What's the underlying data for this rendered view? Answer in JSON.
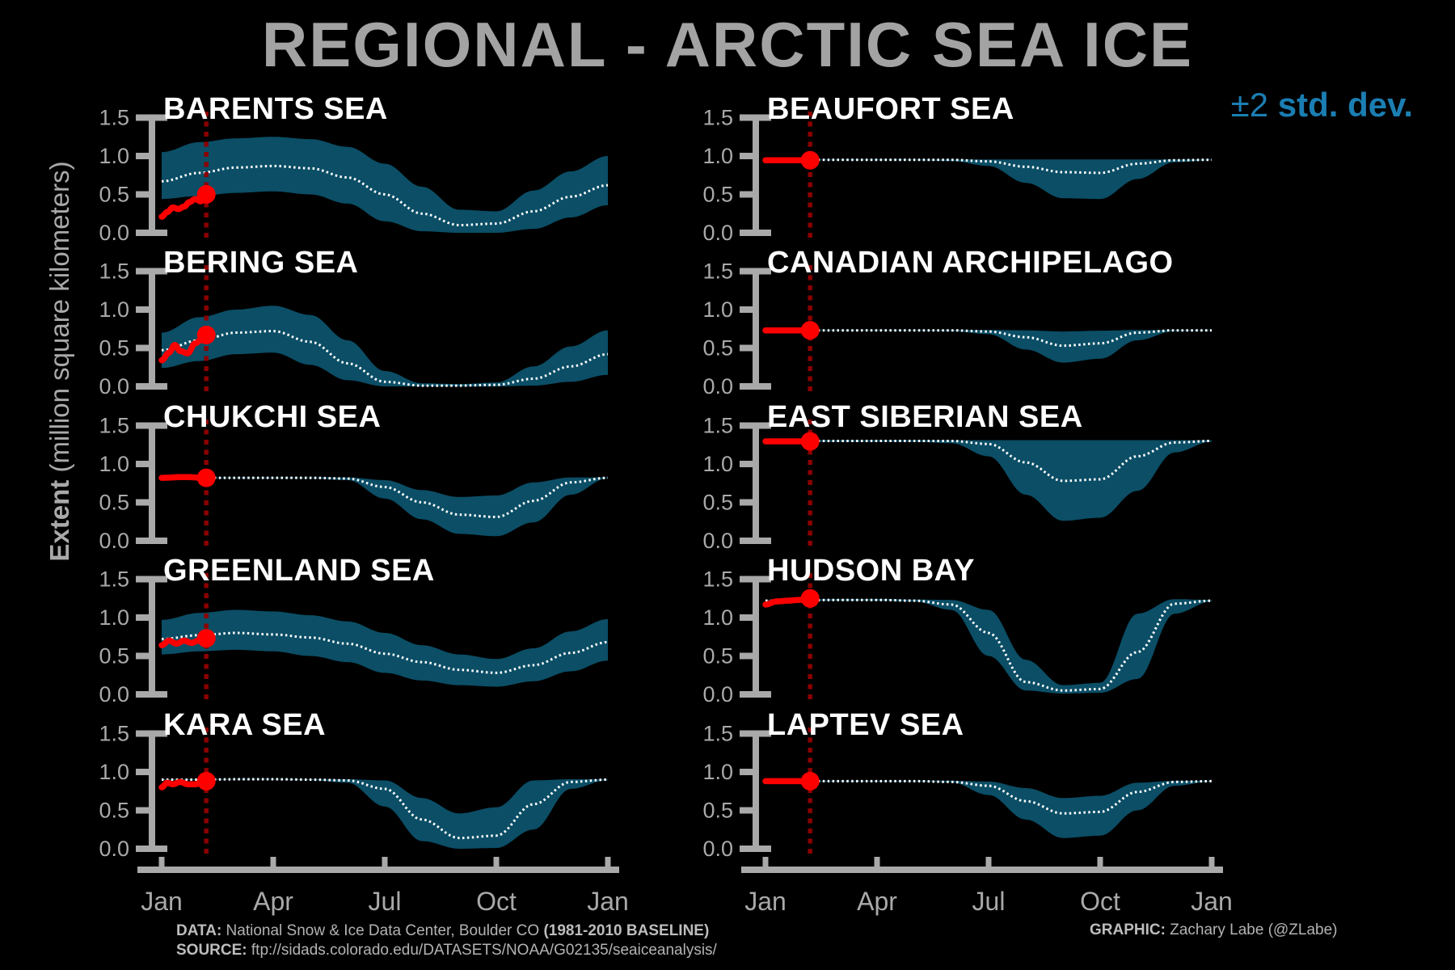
{
  "title": "REGIONAL - ARCTIC SEA ICE",
  "legend": {
    "symbol": "±2",
    "label": "std. dev."
  },
  "y_axis": {
    "label_bold": "Extent",
    "label_rest": " (million square kilometers)"
  },
  "footer": {
    "data_label": "DATA:",
    "data_value": " National Snow & Ice Data Center, Boulder CO ",
    "data_baseline": "(1981-2010 BASELINE)",
    "source_label": "SOURCE:",
    "source_value": " ftp://sidads.colorado.edu/DATASETS/NOAA/G02135/seaiceanalysis/",
    "graphic_label": "GRAPHIC:",
    "graphic_value": " Zachary Labe (@ZLabe)"
  },
  "colors": {
    "background": "#000000",
    "band": "#0b4e66",
    "mean_line": "#ffffff",
    "current_line": "#ff0000",
    "date_marker": "#8b0000",
    "axis": "#a9a9a9",
    "tick_labels": "#a9a9a9",
    "title": "#a3a3a3",
    "region_title": "#ffffff",
    "legend_blue": "#1b7eb2",
    "footer": "#b3b3b3"
  },
  "axes": {
    "ylim": [
      0,
      1.6
    ],
    "yticks": [
      {
        "label": "1.5",
        "value": 1.5
      },
      {
        "label": "1.0",
        "value": 1.0
      },
      {
        "label": "0.5",
        "value": 0.5
      },
      {
        "label": "0.0",
        "value": 0.0
      }
    ],
    "xticks": [
      {
        "label": "Jan",
        "month": 0
      },
      {
        "label": "Apr",
        "month": 3
      },
      {
        "label": "Jul",
        "month": 6
      },
      {
        "label": "Oct",
        "month": 9
      },
      {
        "label": "Jan",
        "month": 12
      }
    ]
  },
  "chart_data": {
    "type": "area",
    "units": "million square kilometers",
    "band_meaning": "±2 std. dev. envelope around 1981-2010 climatological mean",
    "x_months": [
      0,
      1,
      2,
      3,
      4,
      5,
      6,
      7,
      8,
      9,
      10,
      11,
      12
    ],
    "regions": [
      {
        "name": "BARENTS SEA",
        "column": "left",
        "row": 0,
        "climatology_mean": [
          0.67,
          0.78,
          0.85,
          0.87,
          0.84,
          0.72,
          0.5,
          0.25,
          0.1,
          0.12,
          0.28,
          0.47,
          0.62
        ],
        "band_upper": [
          1.05,
          1.18,
          1.23,
          1.25,
          1.22,
          1.12,
          0.9,
          0.6,
          0.3,
          0.28,
          0.55,
          0.8,
          1.0
        ],
        "band_lower": [
          0.44,
          0.48,
          0.52,
          0.54,
          0.5,
          0.38,
          0.15,
          0.02,
          0.0,
          0.0,
          0.05,
          0.2,
          0.36
        ],
        "current_year": {
          "months": [
            0,
            0.15,
            0.3,
            0.45,
            0.6,
            0.75,
            0.9,
            1.05,
            1.2
          ],
          "extent": [
            0.21,
            0.27,
            0.33,
            0.31,
            0.34,
            0.4,
            0.44,
            0.41,
            0.5
          ]
        }
      },
      {
        "name": "BERING SEA",
        "column": "left",
        "row": 1,
        "climatology_mean": [
          0.47,
          0.6,
          0.7,
          0.72,
          0.58,
          0.3,
          0.06,
          0.01,
          0.01,
          0.02,
          0.1,
          0.26,
          0.42
        ],
        "band_upper": [
          0.7,
          0.9,
          1.0,
          1.05,
          0.93,
          0.6,
          0.2,
          0.04,
          0.03,
          0.05,
          0.26,
          0.52,
          0.73
        ],
        "band_lower": [
          0.24,
          0.33,
          0.42,
          0.44,
          0.28,
          0.08,
          0.0,
          0.0,
          0.0,
          0.0,
          0.01,
          0.06,
          0.15
        ],
        "current_year": {
          "months": [
            0,
            0.2,
            0.35,
            0.5,
            0.7,
            0.9,
            1.05,
            1.2
          ],
          "extent": [
            0.34,
            0.44,
            0.54,
            0.46,
            0.43,
            0.56,
            0.6,
            0.67
          ]
        }
      },
      {
        "name": "CHUKCHI SEA",
        "column": "left",
        "row": 2,
        "climatology_mean": [
          0.82,
          0.82,
          0.82,
          0.82,
          0.82,
          0.81,
          0.7,
          0.5,
          0.34,
          0.31,
          0.52,
          0.76,
          0.82
        ],
        "band_upper": [
          0.825,
          0.825,
          0.825,
          0.825,
          0.825,
          0.825,
          0.79,
          0.66,
          0.57,
          0.59,
          0.76,
          0.825,
          0.825
        ],
        "band_lower": [
          0.815,
          0.815,
          0.815,
          0.815,
          0.815,
          0.79,
          0.55,
          0.28,
          0.09,
          0.06,
          0.24,
          0.6,
          0.815
        ],
        "current_year": {
          "months": [
            0,
            0.6,
            1.2
          ],
          "extent": [
            0.82,
            0.83,
            0.82
          ]
        }
      },
      {
        "name": "GREENLAND SEA",
        "column": "left",
        "row": 3,
        "climatology_mean": [
          0.72,
          0.77,
          0.8,
          0.78,
          0.74,
          0.66,
          0.53,
          0.42,
          0.32,
          0.28,
          0.38,
          0.54,
          0.68
        ],
        "band_upper": [
          0.97,
          1.06,
          1.1,
          1.08,
          1.03,
          0.95,
          0.8,
          0.64,
          0.52,
          0.46,
          0.6,
          0.82,
          0.98
        ],
        "band_lower": [
          0.52,
          0.56,
          0.58,
          0.56,
          0.5,
          0.42,
          0.28,
          0.18,
          0.12,
          0.1,
          0.17,
          0.3,
          0.44
        ],
        "current_year": {
          "months": [
            0,
            0.2,
            0.4,
            0.6,
            0.8,
            1.0,
            1.2
          ],
          "extent": [
            0.64,
            0.7,
            0.66,
            0.7,
            0.67,
            0.7,
            0.73
          ]
        }
      },
      {
        "name": "KARA SEA",
        "column": "left",
        "row": 4,
        "climatology_mean": [
          0.9,
          0.9,
          0.905,
          0.905,
          0.9,
          0.89,
          0.78,
          0.38,
          0.14,
          0.17,
          0.58,
          0.87,
          0.9
        ],
        "band_upper": [
          0.905,
          0.905,
          0.91,
          0.91,
          0.905,
          0.905,
          0.89,
          0.66,
          0.46,
          0.54,
          0.89,
          0.905,
          0.905
        ],
        "band_lower": [
          0.895,
          0.895,
          0.9,
          0.9,
          0.895,
          0.86,
          0.55,
          0.1,
          0.0,
          0.01,
          0.25,
          0.78,
          0.895
        ],
        "current_year": {
          "months": [
            0,
            0.15,
            0.3,
            0.5,
            0.7,
            0.9,
            1.05,
            1.2
          ],
          "extent": [
            0.8,
            0.86,
            0.84,
            0.87,
            0.84,
            0.84,
            0.86,
            0.88
          ]
        }
      },
      {
        "name": "BEAUFORT SEA",
        "column": "right",
        "row": 0,
        "climatology_mean": [
          0.95,
          0.95,
          0.95,
          0.95,
          0.95,
          0.95,
          0.93,
          0.86,
          0.79,
          0.78,
          0.9,
          0.945,
          0.95
        ],
        "band_upper": [
          0.955,
          0.955,
          0.955,
          0.955,
          0.955,
          0.955,
          0.955,
          0.955,
          0.955,
          0.955,
          0.955,
          0.955,
          0.955
        ],
        "band_lower": [
          0.945,
          0.945,
          0.945,
          0.945,
          0.945,
          0.935,
          0.87,
          0.65,
          0.45,
          0.44,
          0.7,
          0.92,
          0.945
        ],
        "current_year": {
          "months": [
            0,
            1.2
          ],
          "extent": [
            0.945,
            0.945
          ]
        }
      },
      {
        "name": "CANADIAN ARCHIPELAGO",
        "column": "right",
        "row": 1,
        "climatology_mean": [
          0.73,
          0.73,
          0.73,
          0.73,
          0.73,
          0.73,
          0.715,
          0.64,
          0.53,
          0.56,
          0.7,
          0.73,
          0.73
        ],
        "band_upper": [
          0.735,
          0.735,
          0.735,
          0.735,
          0.735,
          0.735,
          0.735,
          0.73,
          0.715,
          0.725,
          0.735,
          0.735,
          0.735
        ],
        "band_lower": [
          0.725,
          0.725,
          0.725,
          0.725,
          0.725,
          0.72,
          0.68,
          0.48,
          0.31,
          0.36,
          0.6,
          0.72,
          0.725
        ],
        "current_year": {
          "months": [
            0,
            1.2
          ],
          "extent": [
            0.73,
            0.73
          ]
        }
      },
      {
        "name": "EAST SIBERIAN SEA",
        "column": "right",
        "row": 2,
        "climatology_mean": [
          1.3,
          1.3,
          1.3,
          1.3,
          1.3,
          1.3,
          1.26,
          1.02,
          0.78,
          0.8,
          1.1,
          1.28,
          1.3
        ],
        "band_upper": [
          1.31,
          1.31,
          1.31,
          1.31,
          1.31,
          1.31,
          1.31,
          1.31,
          1.31,
          1.31,
          1.31,
          1.31,
          1.31
        ],
        "band_lower": [
          1.29,
          1.29,
          1.29,
          1.29,
          1.29,
          1.27,
          1.1,
          0.6,
          0.26,
          0.3,
          0.65,
          1.15,
          1.29
        ],
        "current_year": {
          "months": [
            0,
            1.2
          ],
          "extent": [
            1.295,
            1.295
          ]
        }
      },
      {
        "name": "HUDSON BAY",
        "column": "right",
        "row": 3,
        "climatology_mean": [
          1.22,
          1.225,
          1.23,
          1.23,
          1.22,
          1.17,
          0.8,
          0.16,
          0.05,
          0.07,
          0.55,
          1.18,
          1.22
        ],
        "band_upper": [
          1.23,
          1.235,
          1.24,
          1.24,
          1.235,
          1.23,
          1.1,
          0.45,
          0.12,
          0.15,
          1.05,
          1.24,
          1.23
        ],
        "band_lower": [
          1.21,
          1.215,
          1.22,
          1.22,
          1.21,
          1.1,
          0.5,
          0.05,
          0.01,
          0.02,
          0.2,
          1.05,
          1.21
        ],
        "current_year": {
          "months": [
            0,
            0.3,
            0.6,
            0.9,
            1.2
          ],
          "extent": [
            1.17,
            1.21,
            1.22,
            1.23,
            1.25
          ]
        }
      },
      {
        "name": "LAPTEV SEA",
        "column": "right",
        "row": 4,
        "climatology_mean": [
          0.88,
          0.88,
          0.88,
          0.88,
          0.88,
          0.87,
          0.82,
          0.62,
          0.46,
          0.48,
          0.74,
          0.87,
          0.88
        ],
        "band_upper": [
          0.885,
          0.885,
          0.885,
          0.885,
          0.885,
          0.885,
          0.875,
          0.79,
          0.66,
          0.69,
          0.86,
          0.885,
          0.885
        ],
        "band_lower": [
          0.875,
          0.875,
          0.875,
          0.875,
          0.875,
          0.865,
          0.7,
          0.38,
          0.14,
          0.17,
          0.5,
          0.82,
          0.875
        ],
        "current_year": {
          "months": [
            0,
            1.2
          ],
          "extent": [
            0.88,
            0.88
          ]
        }
      }
    ]
  }
}
